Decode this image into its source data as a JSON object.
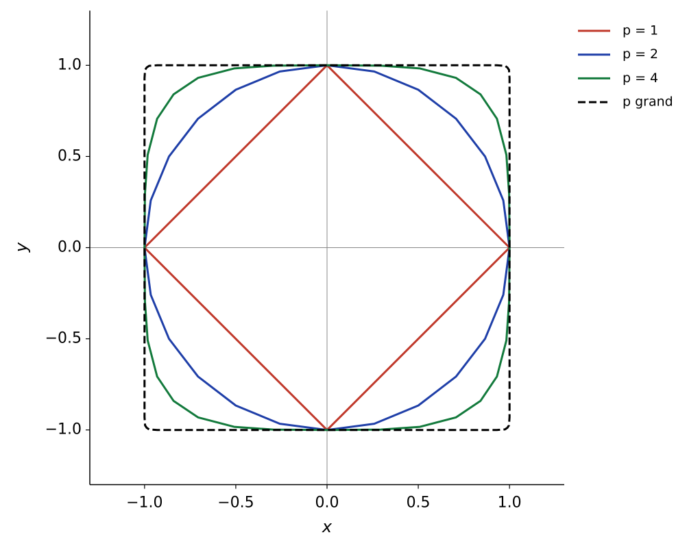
{
  "chart_data": {
    "type": "line",
    "xlabel": "x",
    "ylabel": "y",
    "xlim": [
      -1.3,
      1.3
    ],
    "ylim": [
      -1.3,
      1.3
    ],
    "xticks": [
      {
        "value": -1,
        "label": "−1.0"
      },
      {
        "value": -0.5,
        "label": "−0.5"
      },
      {
        "value": 0,
        "label": "0.0"
      },
      {
        "value": 0.5,
        "label": "0.5"
      },
      {
        "value": 1,
        "label": "1.0"
      }
    ],
    "yticks": [
      {
        "value": -1,
        "label": "−1.0"
      },
      {
        "value": -0.5,
        "label": "−0.5"
      },
      {
        "value": 0,
        "label": "0.0"
      },
      {
        "value": 0.5,
        "label": "0.5"
      },
      {
        "value": 1,
        "label": "1.0"
      }
    ],
    "zero_lines": true,
    "legend": "outside upper right",
    "series": [
      {
        "name": "p = 1",
        "color": "#c0392b",
        "linestyle": "solid",
        "x": [
          1,
          0,
          -1,
          0,
          1
        ],
        "y": [
          0,
          1,
          0,
          -1,
          0
        ]
      },
      {
        "name": "p = 2",
        "color": "#1f3fa8",
        "linestyle": "solid",
        "x": [
          1,
          0.966,
          0.866,
          0.707,
          0.5,
          0.259,
          0,
          -0.259,
          -0.5,
          -0.707,
          -0.866,
          -0.966,
          -1,
          -0.966,
          -0.866,
          -0.707,
          -0.5,
          -0.259,
          0,
          0.259,
          0.5,
          0.707,
          0.866,
          0.966,
          1
        ],
        "y": [
          0,
          0.259,
          0.5,
          0.707,
          0.866,
          0.966,
          1,
          0.966,
          0.866,
          0.707,
          0.5,
          0.259,
          0,
          -0.259,
          -0.5,
          -0.707,
          -0.866,
          -0.966,
          -1,
          -0.966,
          -0.866,
          -0.707,
          -0.5,
          -0.259,
          0
        ]
      },
      {
        "name": "p = 4",
        "color": "#137a3c",
        "linestyle": "solid",
        "x": [
          1,
          0.998,
          0.983,
          0.931,
          0.841,
          0.707,
          0.509,
          0.295,
          0,
          -0.295,
          -0.509,
          -0.707,
          -0.841,
          -0.931,
          -0.983,
          -0.998,
          -1,
          -0.998,
          -0.983,
          -0.931,
          -0.841,
          -0.707,
          -0.509,
          -0.295,
          0,
          0.295,
          0.509,
          0.707,
          0.841,
          0.931,
          0.983,
          0.998,
          1
        ],
        "y": [
          0,
          0.295,
          0.509,
          0.707,
          0.841,
          0.931,
          0.983,
          0.998,
          1,
          0.998,
          0.983,
          0.931,
          0.841,
          0.707,
          0.509,
          0.295,
          0,
          -0.295,
          -0.509,
          -0.707,
          -0.841,
          -0.931,
          -0.983,
          -0.998,
          -1,
          -0.998,
          -0.983,
          -0.931,
          -0.841,
          -0.707,
          -0.509,
          -0.295,
          0
        ]
      },
      {
        "name": "p grand",
        "color": "#000000",
        "linestyle": "dashed",
        "x": [
          1,
          1,
          0.997,
          0.988,
          0.975,
          0.93,
          0,
          -0.93,
          -0.975,
          -0.988,
          -0.997,
          -1,
          -1,
          -1,
          -0.997,
          -0.988,
          -0.975,
          -0.93,
          0,
          0.93,
          0.975,
          0.988,
          0.997,
          1,
          1
        ],
        "y": [
          0,
          0.93,
          0.975,
          0.988,
          0.997,
          1,
          1,
          1,
          0.997,
          0.988,
          0.975,
          0.93,
          0,
          -0.93,
          -0.975,
          -0.988,
          -0.997,
          -1,
          -1,
          -1,
          -0.997,
          -0.988,
          -0.975,
          -0.93,
          0
        ]
      }
    ]
  }
}
